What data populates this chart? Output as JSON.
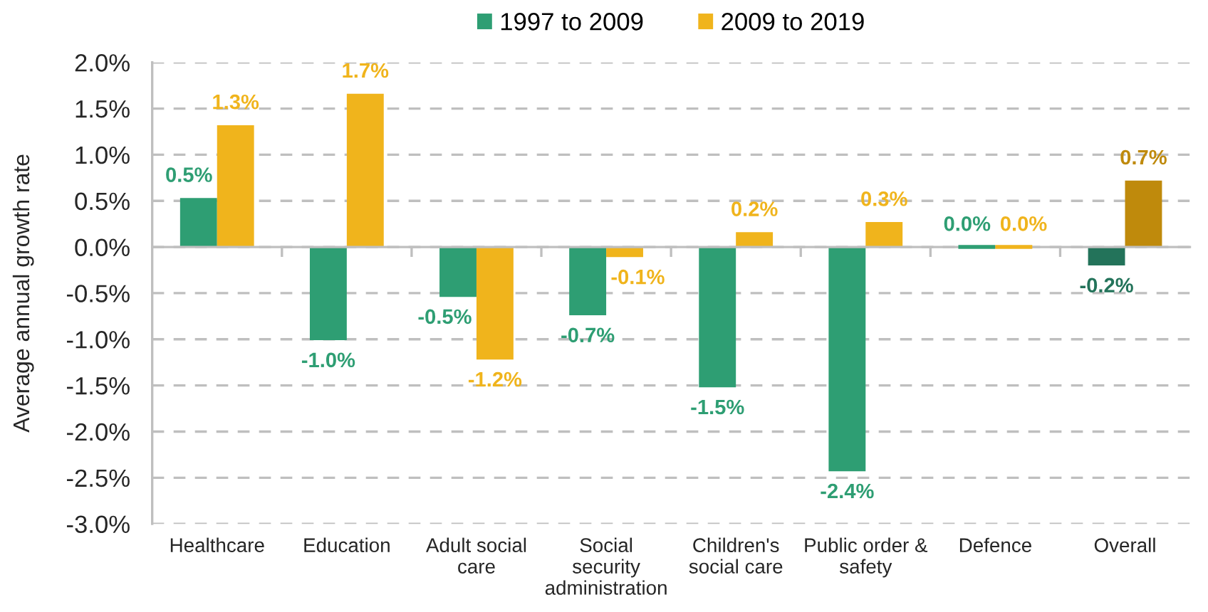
{
  "chart_data": {
    "type": "bar",
    "ylabel": "Average annual growth rate",
    "categories": [
      "Healthcare",
      "Education",
      "Adult social\ncare",
      "Social\nsecurity\nadministration",
      "Children's\nsocial care",
      "Public order &\nsafety",
      "Defence",
      "Overall"
    ],
    "series": [
      {
        "name": "1997 to 2009",
        "color": "#2e9e73",
        "colors": [
          "#2e9e73",
          "#2e9e73",
          "#2e9e73",
          "#2e9e73",
          "#2e9e73",
          "#2e9e73",
          "#2e9e73",
          "#23735a"
        ],
        "values": [
          0.53,
          -1.01,
          -0.54,
          -0.74,
          -1.52,
          -2.43,
          0.0,
          -0.2
        ],
        "value_labels": [
          "0.5%",
          "-1.0%",
          "-0.5%",
          "-0.7%",
          "-1.5%",
          "-2.4%",
          "0.0%",
          "-0.2%"
        ]
      },
      {
        "name": "2009 to 2019",
        "color": "#f0b41c",
        "colors": [
          "#f0b41c",
          "#f0b41c",
          "#f0b41c",
          "#f0b41c",
          "#f0b41c",
          "#f0b41c",
          "#f0b41c",
          "#bf8a0c"
        ],
        "values": [
          1.32,
          1.66,
          -1.22,
          -0.11,
          0.16,
          0.27,
          0.0,
          0.72
        ],
        "value_labels": [
          "1.3%",
          "1.7%",
          "-1.2%",
          "-0.1%",
          "0.2%",
          "0.3%",
          "0.0%",
          "0.7%"
        ]
      }
    ],
    "ylim": [
      -3.0,
      2.0
    ],
    "yticks": [
      {
        "value": -3.0,
        "label": "-3.0%"
      },
      {
        "value": -2.5,
        "label": "-2.5%"
      },
      {
        "value": -2.0,
        "label": "-2.0%"
      },
      {
        "value": -1.5,
        "label": "-1.5%"
      },
      {
        "value": -1.0,
        "label": "-1.0%"
      },
      {
        "value": -0.5,
        "label": "-0.5%"
      },
      {
        "value": 0.0,
        "label": "0.0%"
      },
      {
        "value": 0.5,
        "label": "0.5%"
      },
      {
        "value": 1.0,
        "label": "1.0%"
      },
      {
        "value": 1.5,
        "label": "1.5%"
      },
      {
        "value": 2.0,
        "label": "2.0%"
      }
    ],
    "grid": "y",
    "legend": "top"
  }
}
